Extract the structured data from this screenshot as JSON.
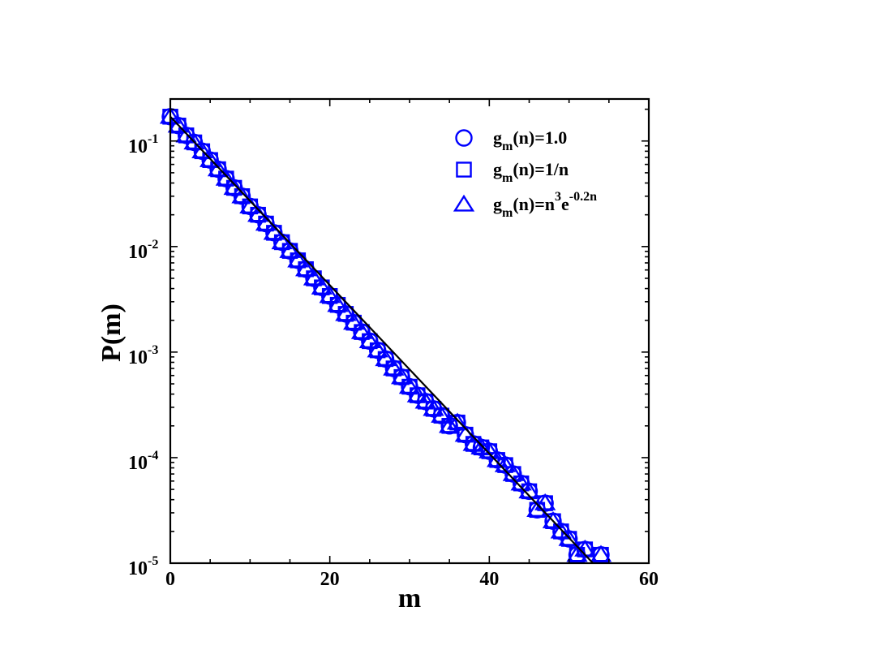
{
  "chart_data": {
    "type": "scatter",
    "title": "",
    "xlabel": "m",
    "ylabel": "P(m)",
    "xlim": [
      0,
      60
    ],
    "ylim": [
      1e-05,
      0.25
    ],
    "yscale": "log",
    "grid": false,
    "legend_position": "top-right",
    "colors": {
      "markers": "#0000ff",
      "fit_line": "#000000",
      "axes": "#000000"
    },
    "x_ticks": [
      {
        "value": 0,
        "label": "0"
      },
      {
        "value": 20,
        "label": "20"
      },
      {
        "value": 40,
        "label": "40"
      },
      {
        "value": 60,
        "label": "60"
      }
    ],
    "y_ticks": [
      {
        "value": 1e-05,
        "base": "10",
        "exp": "-5"
      },
      {
        "value": 0.0001,
        "base": "10",
        "exp": "-4"
      },
      {
        "value": 0.001,
        "base": "10",
        "exp": "-3"
      },
      {
        "value": 0.01,
        "base": "10",
        "exp": "-2"
      },
      {
        "value": 0.1,
        "base": "10",
        "exp": "-1"
      }
    ],
    "fit_line": {
      "x": [
        0,
        53
      ],
      "y": [
        0.17,
        1e-05
      ]
    },
    "series": [
      {
        "name": "g_m(n)=1.0",
        "marker": "circle",
        "legend": {
          "base": "g",
          "sub": "m",
          "rest": "(n)=1.0"
        },
        "x": [
          0,
          1,
          2,
          3,
          4,
          5,
          6,
          7,
          8,
          9,
          10,
          11,
          12,
          13,
          14,
          15,
          16,
          17,
          18,
          19,
          20,
          21,
          22,
          23,
          24,
          25,
          26,
          27,
          28,
          29,
          30,
          31,
          32,
          33,
          34,
          35,
          36,
          37,
          38,
          39,
          40,
          41,
          42,
          43,
          44,
          45,
          46,
          47,
          48,
          49,
          50,
          51,
          52,
          54
        ],
        "y": [
          0.17,
          0.14,
          0.113,
          0.097,
          0.08,
          0.066,
          0.054,
          0.044,
          0.036,
          0.03,
          0.024,
          0.02,
          0.0165,
          0.0135,
          0.011,
          0.0091,
          0.0074,
          0.0061,
          0.005,
          0.0041,
          0.0034,
          0.0028,
          0.0023,
          0.0019,
          0.00155,
          0.00127,
          0.00104,
          0.00086,
          0.0007,
          0.00058,
          0.00047,
          0.00039,
          0.00034,
          0.00029,
          0.00025,
          0.0002,
          0.000215,
          0.000165,
          0.000135,
          0.000125,
          0.000115,
          9.5e-05,
          8.5e-05,
          7e-05,
          5.7e-05,
          4.8e-05,
          3.2e-05,
          3.7e-05,
          2.5e-05,
          2e-05,
          1.7e-05,
          1.2e-05,
          1.35e-05,
          1.2e-05
        ]
      },
      {
        "name": "g_m(n)=1/n",
        "marker": "square",
        "legend": {
          "base": "g",
          "sub": "m",
          "rest": "(n)=1/n"
        },
        "x": [
          0,
          1,
          2,
          3,
          4,
          5,
          6,
          7,
          8,
          9,
          10,
          11,
          12,
          13,
          14,
          15,
          16,
          17,
          18,
          19,
          20,
          21,
          22,
          23,
          24,
          25,
          26,
          27,
          28,
          29,
          30,
          31,
          32,
          33,
          34,
          35,
          36,
          37,
          38,
          39,
          40,
          41,
          42,
          43,
          44,
          45,
          46,
          47,
          48,
          49,
          50,
          51,
          52,
          54
        ],
        "y": [
          0.17,
          0.14,
          0.113,
          0.097,
          0.08,
          0.066,
          0.054,
          0.044,
          0.036,
          0.03,
          0.024,
          0.02,
          0.0165,
          0.0135,
          0.011,
          0.0091,
          0.0074,
          0.0061,
          0.005,
          0.0041,
          0.0034,
          0.0028,
          0.0023,
          0.0019,
          0.00155,
          0.00127,
          0.00104,
          0.00086,
          0.0007,
          0.00058,
          0.00047,
          0.00039,
          0.00034,
          0.00029,
          0.00025,
          0.0002,
          0.000215,
          0.000165,
          0.000135,
          0.000125,
          0.000115,
          9.5e-05,
          8.5e-05,
          7e-05,
          5.7e-05,
          4.8e-05,
          3.2e-05,
          3.7e-05,
          2.5e-05,
          2e-05,
          1.7e-05,
          1.2e-05,
          1.35e-05,
          1.2e-05
        ]
      },
      {
        "name": "g_m(n)=n^3 e^-0.2n",
        "marker": "triangle",
        "legend": {
          "base": "g",
          "sub": "m",
          "rest": "(n)=n",
          "sup1": "3",
          "mid": "e",
          "sup2": "-0.2n"
        },
        "x": [
          0,
          1,
          2,
          3,
          4,
          5,
          6,
          7,
          8,
          9,
          10,
          11,
          12,
          13,
          14,
          15,
          16,
          17,
          18,
          19,
          20,
          21,
          22,
          23,
          24,
          25,
          26,
          27,
          28,
          29,
          30,
          31,
          32,
          33,
          34,
          35,
          36,
          37,
          38,
          39,
          40,
          41,
          42,
          43,
          44,
          45,
          46,
          47,
          48,
          49,
          50,
          51,
          52,
          54
        ],
        "y": [
          0.17,
          0.14,
          0.113,
          0.097,
          0.08,
          0.066,
          0.054,
          0.044,
          0.036,
          0.03,
          0.024,
          0.02,
          0.0165,
          0.0135,
          0.011,
          0.0091,
          0.0074,
          0.0061,
          0.005,
          0.0041,
          0.0034,
          0.0028,
          0.0023,
          0.0019,
          0.00155,
          0.00127,
          0.00104,
          0.00086,
          0.0007,
          0.00058,
          0.00047,
          0.00039,
          0.00034,
          0.00029,
          0.00025,
          0.0002,
          0.000215,
          0.000165,
          0.000135,
          0.000125,
          0.000115,
          9.5e-05,
          8.5e-05,
          7e-05,
          5.7e-05,
          4.8e-05,
          3.2e-05,
          3.7e-05,
          2.5e-05,
          2e-05,
          1.7e-05,
          1.2e-05,
          1.35e-05,
          1.2e-05
        ]
      }
    ]
  }
}
